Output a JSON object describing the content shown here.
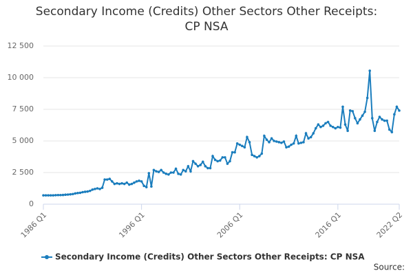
{
  "chart_data": {
    "type": "line",
    "title": "Secondary Income (Credits) Other Sectors Other Receipts: CP NSA",
    "source": "Source:",
    "categories": [
      "1986 Q1",
      null,
      null,
      null,
      null,
      null,
      null,
      null,
      null,
      null,
      null,
      null,
      null,
      null,
      null,
      null,
      null,
      null,
      null,
      null,
      null,
      null,
      null,
      null,
      null,
      null,
      null,
      null,
      null,
      null,
      null,
      null,
      null,
      null,
      null,
      null,
      null,
      null,
      null,
      null,
      "1996 Q1",
      null,
      null,
      null,
      null,
      null,
      null,
      null,
      null,
      null,
      null,
      null,
      null,
      null,
      null,
      null,
      null,
      null,
      null,
      null,
      null,
      null,
      null,
      null,
      null,
      null,
      null,
      null,
      null,
      null,
      null,
      null,
      null,
      null,
      null,
      null,
      null,
      null,
      null,
      null,
      "2006 Q1",
      null,
      null,
      null,
      null,
      null,
      null,
      null,
      null,
      null,
      null,
      null,
      null,
      null,
      null,
      null,
      null,
      null,
      null,
      null,
      null,
      null,
      null,
      null,
      null,
      null,
      null,
      null,
      null,
      null,
      null,
      null,
      null,
      null,
      null,
      null,
      null,
      null,
      null,
      null,
      "2016 Q1",
      null,
      null,
      null,
      null,
      null,
      null,
      null,
      null,
      null,
      null,
      null,
      null,
      null,
      null,
      null,
      null,
      null,
      null,
      null,
      null,
      null,
      null,
      null,
      null,
      "2022 Q2"
    ],
    "series": [
      {
        "name": "Secondary Income (Credits) Other Sectors Other Receipts: CP NSA",
        "color": "#1a7dbd",
        "values": [
          700,
          700,
          700,
          700,
          700,
          710,
          720,
          720,
          730,
          750,
          760,
          780,
          800,
          850,
          880,
          900,
          950,
          980,
          1000,
          1050,
          1150,
          1200,
          1250,
          1200,
          1300,
          1950,
          1950,
          2000,
          1800,
          1600,
          1650,
          1600,
          1650,
          1600,
          1700,
          1550,
          1600,
          1700,
          1800,
          1850,
          1800,
          1450,
          1350,
          2450,
          1400,
          2700,
          2600,
          2550,
          2700,
          2500,
          2400,
          2350,
          2500,
          2500,
          2800,
          2400,
          2350,
          2700,
          2600,
          3000,
          2600,
          3400,
          3200,
          3000,
          3100,
          3350,
          3000,
          2850,
          2850,
          3800,
          3500,
          3400,
          3450,
          3700,
          3700,
          3200,
          3400,
          4100,
          4100,
          4800,
          4700,
          4600,
          4500,
          5300,
          4900,
          3900,
          3800,
          3700,
          3800,
          4000,
          5400,
          5100,
          4900,
          5200,
          5000,
          4950,
          4900,
          4850,
          4950,
          4500,
          4550,
          4700,
          4800,
          5400,
          4800,
          4850,
          4900,
          5600,
          5200,
          5300,
          5600,
          6000,
          6300,
          6100,
          6200,
          6400,
          6500,
          6200,
          6100,
          6000,
          6100,
          6050,
          7700,
          6300,
          5800,
          7400,
          7350,
          6800,
          6400,
          6700,
          7000,
          7300,
          8400,
          10550,
          6800,
          5800,
          6500,
          6900,
          6700,
          6600,
          6600,
          5900,
          5700,
          7100,
          7700,
          7400
        ]
      }
    ],
    "ylim": [
      0,
      12500
    ],
    "yticks": [
      0,
      {
        "value": 2500,
        "label": "2 500"
      },
      {
        "value": 5000,
        "label": "5 000"
      },
      {
        "value": 7500,
        "label": "7 500"
      },
      {
        "value": 10000,
        "label": "10 000"
      },
      {
        "value": 12500,
        "label": "12 500"
      }
    ],
    "grid": true
  }
}
